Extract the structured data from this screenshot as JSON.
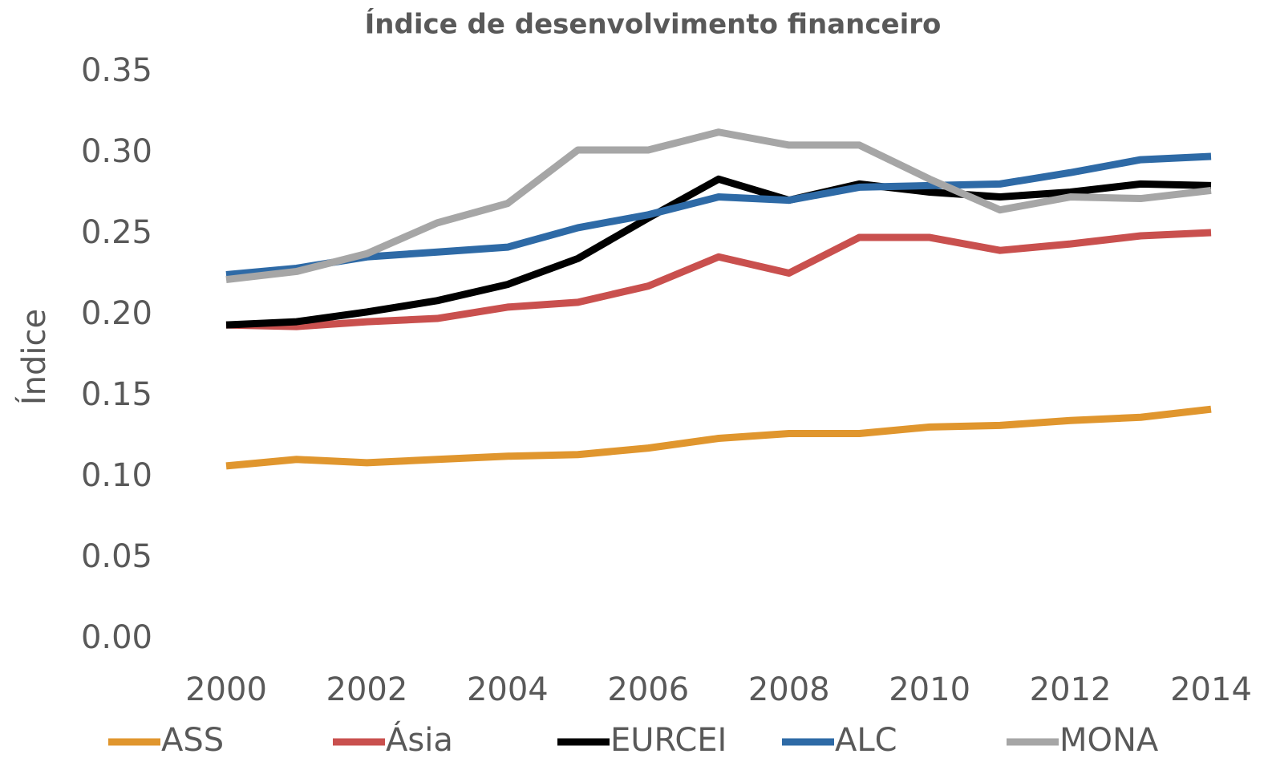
{
  "chart_data": {
    "type": "line",
    "title": "Índice de desenvolvimento financeiro",
    "y_label": "Índice",
    "x": [
      2000,
      2001,
      2002,
      2003,
      2004,
      2005,
      2006,
      2007,
      2008,
      2009,
      2010,
      2011,
      2012,
      2013,
      2014
    ],
    "xlim": [
      2000,
      2014
    ],
    "xticks": [
      2000,
      2002,
      2004,
      2006,
      2008,
      2010,
      2012,
      2014
    ],
    "ylim": [
      0,
      0.35
    ],
    "yticks": [
      {
        "value": 0,
        "label": "0.00"
      },
      0.05,
      {
        "value": 0.1,
        "label": "0.10"
      },
      0.15,
      {
        "value": 0.2,
        "label": "0.20"
      },
      0.25,
      {
        "value": 0.3,
        "label": "0.30"
      },
      0.35
    ],
    "grid": false,
    "legend": "bottom",
    "series": [
      {
        "name": "ASS",
        "color": "#e0962e",
        "values": [
          0.107,
          0.111,
          0.109,
          0.111,
          0.113,
          0.114,
          0.118,
          0.124,
          0.127,
          0.127,
          0.131,
          0.132,
          0.135,
          0.137,
          0.142
        ]
      },
      {
        "name": "Ásia",
        "color": "#c9504e",
        "values": [
          0.194,
          0.193,
          0.196,
          0.198,
          0.205,
          0.208,
          0.218,
          0.236,
          0.226,
          0.248,
          0.248,
          0.24,
          0.244,
          0.249,
          0.251
        ]
      },
      {
        "name": "EURCEI",
        "color": "#000000",
        "values": [
          0.194,
          0.196,
          0.202,
          0.209,
          0.219,
          0.235,
          0.26,
          0.284,
          0.271,
          0.281,
          0.276,
          0.273,
          0.276,
          0.281,
          0.28
        ]
      },
      {
        "name": "ALC",
        "color": "#2e6aa6",
        "values": [
          0.225,
          0.229,
          0.236,
          0.239,
          0.242,
          0.254,
          0.262,
          0.273,
          0.271,
          0.279,
          0.28,
          0.281,
          0.288,
          0.296,
          0.298
        ]
      },
      {
        "name": "MONA",
        "color": "#a6a6a6",
        "values": [
          0.222,
          0.227,
          0.238,
          0.257,
          0.269,
          0.302,
          0.302,
          0.313,
          0.305,
          0.305,
          0.284,
          0.265,
          0.273,
          0.272,
          0.277
        ]
      }
    ]
  }
}
